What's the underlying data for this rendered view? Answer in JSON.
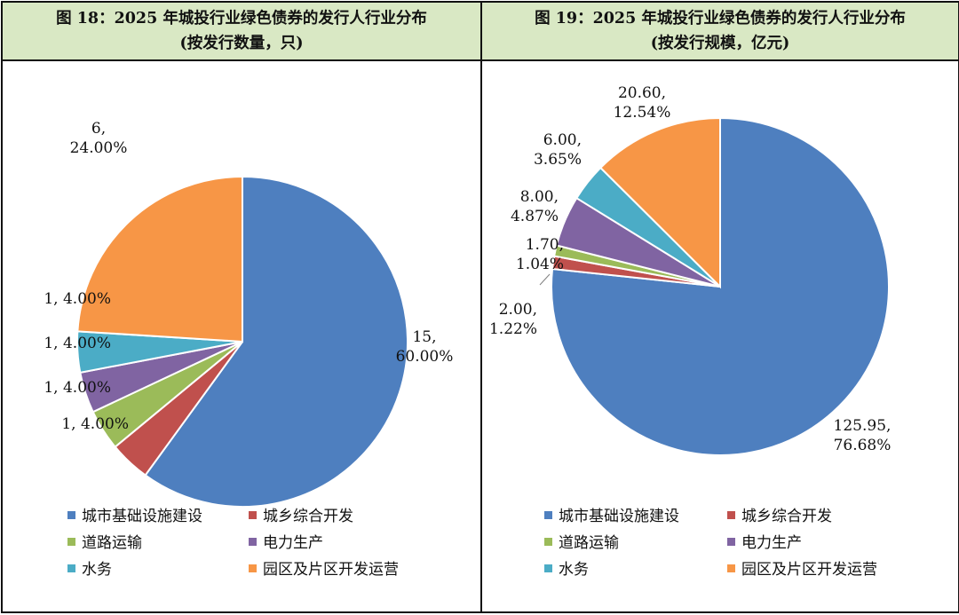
{
  "chart_data": [
    {
      "type": "pie",
      "title": "图 18：2025 年城投行业绿色债券的发行人行业分布",
      "subtitle": "(按发行数量，只)",
      "categories": [
        "城市基础设施建设",
        "城乡综合开发",
        "道路运输",
        "电力生产",
        "水务",
        "园区及片区开发运营"
      ],
      "values": [
        15,
        1,
        1,
        1,
        1,
        6
      ],
      "value_labels": [
        "15,",
        "1,",
        "1,",
        "1,",
        "1,",
        "6,"
      ],
      "percent_labels": [
        "60.00%",
        "4.00%",
        "4.00%",
        "4.00%",
        "4.00%",
        "24.00%"
      ],
      "legend": "bottom"
    },
    {
      "type": "pie",
      "title": "图 19：2025 年城投行业绿色债券的发行人行业分布",
      "subtitle": "(按发行规模，亿元)",
      "categories": [
        "城市基础设施建设",
        "城乡综合开发",
        "道路运输",
        "电力生产",
        "水务",
        "园区及片区开发运营"
      ],
      "values": [
        125.95,
        2.0,
        1.7,
        8.0,
        6.0,
        20.6
      ],
      "value_labels": [
        "125.95,",
        "2.00,",
        "1.70,",
        "8.00,",
        "6.00,",
        "20.60,"
      ],
      "percent_labels": [
        "76.68%",
        "1.22%",
        "1.04%",
        "4.87%",
        "3.65%",
        "12.54%"
      ],
      "legend": "bottom"
    }
  ],
  "colors": [
    "#4e7fbf",
    "#c0504d",
    "#9bbb59",
    "#8064a2",
    "#4bacc6",
    "#f79646"
  ]
}
